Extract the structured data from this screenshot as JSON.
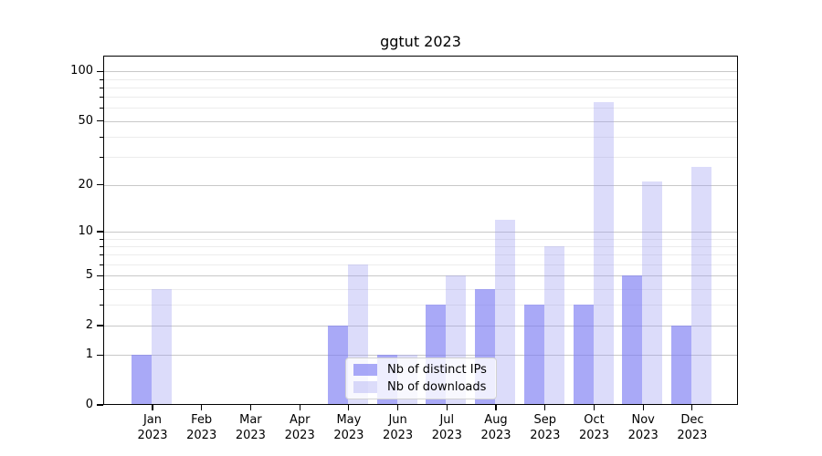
{
  "chart_data": {
    "type": "bar",
    "title": "ggtut 2023",
    "categories": [
      "Jan 2023",
      "Feb 2023",
      "Mar 2023",
      "Apr 2023",
      "May 2023",
      "Jun 2023",
      "Jul 2023",
      "Aug 2023",
      "Sep 2023",
      "Oct 2023",
      "Nov 2023",
      "Dec 2023"
    ],
    "months": [
      "Jan",
      "Feb",
      "Mar",
      "Apr",
      "May",
      "Jun",
      "Jul",
      "Aug",
      "Sep",
      "Oct",
      "Nov",
      "Dec"
    ],
    "year": "2023",
    "series": [
      {
        "name": "Nb of distinct IPs",
        "color": "#a9a9f7",
        "fill": "rgba(123,123,243,0.65)",
        "values": [
          1,
          0,
          0,
          0,
          2,
          1,
          3,
          4,
          3,
          3,
          5,
          2
        ]
      },
      {
        "name": "Nb of downloads",
        "color": "#dcdcfa",
        "fill": "rgba(155,155,241,0.35)",
        "values": [
          4,
          0,
          0,
          0,
          6,
          1,
          5,
          12,
          8,
          65,
          21,
          26
        ]
      }
    ],
    "yscale": "log10(x+1)",
    "ylim": [
      0,
      125
    ],
    "yticks": [
      100,
      50,
      20,
      10,
      5,
      2,
      1,
      0
    ],
    "minor_yticks": [
      90,
      80,
      70,
      60,
      40,
      30,
      9,
      8,
      7,
      6,
      4,
      3
    ],
    "grid": "horizontal",
    "legend": {
      "position": "bottom-center"
    },
    "colors": {
      "background": "#ffffff",
      "major_grid": "#c8c8c8",
      "minor_grid": "#ececec",
      "axis": "#000000",
      "legend_border": "#d2d2d2"
    }
  }
}
